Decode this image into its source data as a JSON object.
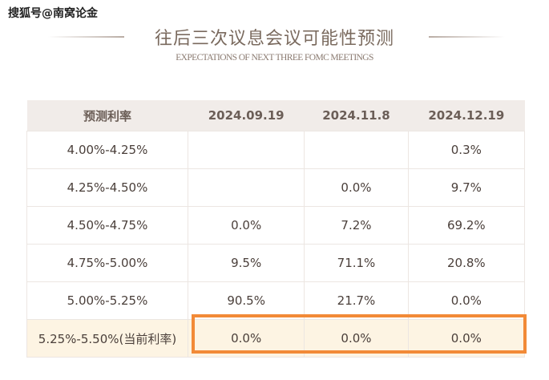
{
  "watermark": "搜狐号@南窝论金",
  "title": "往后三次议息会议可能性预测",
  "subtitle": "EXPECTATIONS OF NEXT THREE FOMC MEETINGS",
  "highlight_color": "#f28a37",
  "table": {
    "headers": [
      "预测利率",
      "2024.09.19",
      "2024.11.8",
      "2024.12.19"
    ],
    "rows": [
      [
        "4.00%-4.25%",
        "",
        "",
        "0.3%"
      ],
      [
        "4.25%-4.50%",
        "",
        "0.0%",
        "9.7%"
      ],
      [
        "4.50%-4.75%",
        "0.0%",
        "7.2%",
        "69.2%"
      ],
      [
        "4.75%-5.00%",
        "9.5%",
        "71.1%",
        "20.8%"
      ],
      [
        "5.00%-5.25%",
        "90.5%",
        "21.7%",
        "0.0%"
      ],
      [
        "5.25%-5.50%(当前利率)",
        "0.0%",
        "0.0%",
        "0.0%"
      ]
    ]
  }
}
